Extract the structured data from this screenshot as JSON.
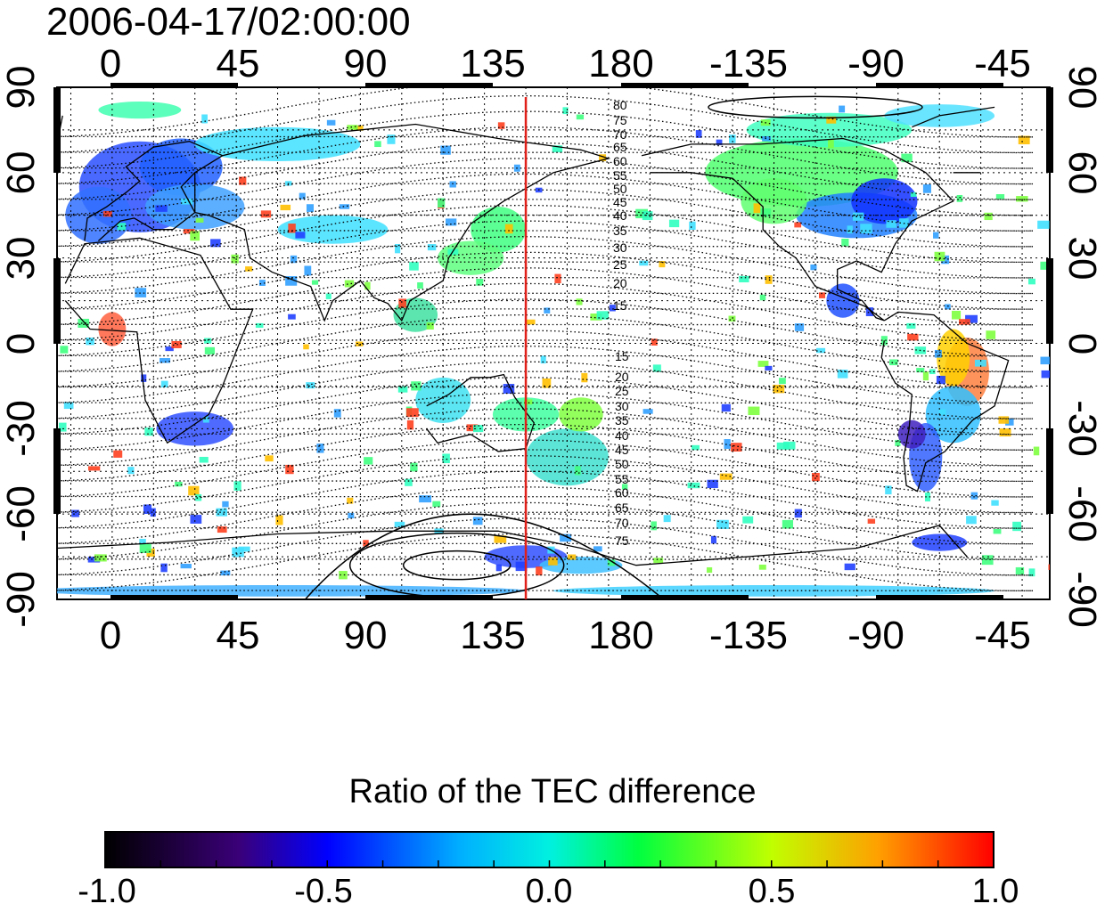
{
  "title": "2006-04-17/02:00:00",
  "map": {
    "lon_ticks_top": [
      "0",
      "45",
      "90",
      "135",
      "180",
      "-135",
      "-90",
      "-45"
    ],
    "lon_ticks_bottom": [
      "0",
      "45",
      "90",
      "135",
      "180",
      "-135",
      "-90",
      "-45"
    ],
    "lat_ticks_left": [
      "90",
      "60",
      "30",
      "0",
      "-30",
      "-60",
      "-90"
    ],
    "lat_ticks_right": [
      "90",
      "60",
      "30",
      "0",
      "-30",
      "-60",
      "-90"
    ],
    "contour_labels_north": [
      "80",
      "75",
      "70",
      "65",
      "60",
      "55",
      "50",
      "45",
      "40",
      "35",
      "30",
      "25",
      "20",
      "15"
    ],
    "contour_labels_south": [
      "15",
      "20",
      "25",
      "30",
      "35",
      "40",
      "45",
      "50",
      "55",
      "60",
      "65",
      "70",
      "75"
    ],
    "meridian_marker_color": "#e0201a",
    "meridian_marker_lon": 150
  },
  "colorbar": {
    "title": "Ratio of the TEC difference",
    "ticks": [
      "-1.0",
      "-0.5",
      "0.0",
      "0.5",
      "1.0"
    ],
    "range": [
      -1.0,
      1.0
    ],
    "colors": [
      "#000000",
      "#3a0078",
      "#0000ff",
      "#00e0ff",
      "#00ff00",
      "#ffff00",
      "#ff8000",
      "#ff0000"
    ]
  }
}
